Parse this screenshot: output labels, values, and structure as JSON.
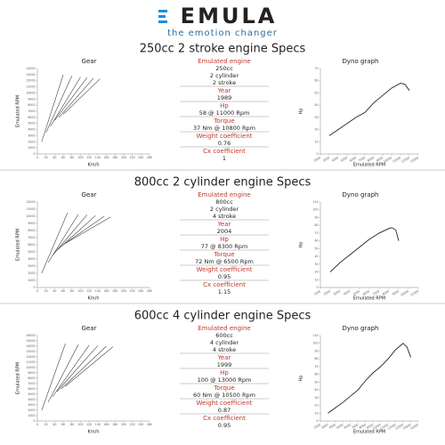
{
  "header": {
    "logo": "EMULA",
    "tagline": "the emotion changer"
  },
  "sections": [
    {
      "title": "250cc 2 stroke engine Specs",
      "specs": [
        {
          "label": "Emulated engine",
          "values": [
            "250cc",
            "2 cylinder",
            "2 stroke"
          ]
        },
        {
          "label": "Year",
          "values": [
            "1989"
          ]
        },
        {
          "label": "Hp",
          "values": [
            "58 @ 11000 Rpm"
          ]
        },
        {
          "label": "Torque",
          "values": [
            "37 Nm @ 10800 Rpm"
          ]
        },
        {
          "label": "Weight coefficient",
          "values": [
            "0.76"
          ]
        },
        {
          "label": "Cx coefficient",
          "values": [
            "1"
          ]
        }
      ]
    },
    {
      "title": "800cc 2 cylinder engine Specs",
      "specs": [
        {
          "label": "Emulated engine",
          "values": [
            "800cc",
            "2 cylinder",
            "4 stroke"
          ]
        },
        {
          "label": "Year",
          "values": [
            "2004"
          ]
        },
        {
          "label": "Hp",
          "values": [
            "77 @ 8300 Rpm"
          ]
        },
        {
          "label": "Torque",
          "values": [
            "72 Nm @ 6500 Rpm"
          ]
        },
        {
          "label": "Weight coefficient",
          "values": [
            "0.95"
          ]
        },
        {
          "label": "Cx coefficient",
          "values": [
            "1.15"
          ]
        }
      ]
    },
    {
      "title": "600cc 4 cylinder engine Specs",
      "specs": [
        {
          "label": "Emulated engine",
          "values": [
            "600cc",
            "4 cylinder",
            "4 stroke"
          ]
        },
        {
          "label": "Year",
          "values": [
            "1999"
          ]
        },
        {
          "label": "Hp",
          "values": [
            "100 @ 13000 Rpm"
          ]
        },
        {
          "label": "Torque",
          "values": [
            "60 Nm @ 10500 Rpm"
          ]
        },
        {
          "label": "Weight coefficient",
          "values": [
            "0.87"
          ]
        },
        {
          "label": "Cx coefficient",
          "values": [
            "0.95"
          ]
        }
      ]
    }
  ],
  "chart_data": [
    {
      "type": "line",
      "title": "Gear",
      "x_label": "Km/h",
      "y_label": "Emulated RPM",
      "xlim": [
        0,
        260
      ],
      "xticks": [
        0,
        20,
        40,
        60,
        80,
        100,
        120,
        140,
        160,
        180,
        200,
        220,
        240,
        260
      ],
      "ylim": [
        0,
        14000
      ],
      "yticks": [
        0,
        1000,
        2000,
        3000,
        4000,
        5000,
        6000,
        7000,
        8000,
        9000,
        10000,
        11000,
        12000,
        13000,
        14000
      ],
      "color": "#444444",
      "series": [
        {
          "x": [
            10,
            60
          ],
          "values": [
            2000,
            13000
          ]
        },
        {
          "x": [
            20,
            80
          ],
          "values": [
            3500,
            12800
          ]
        },
        {
          "x": [
            30,
            100
          ],
          "values": [
            4500,
            12600
          ]
        },
        {
          "x": [
            40,
            115
          ],
          "values": [
            5500,
            12500
          ]
        },
        {
          "x": [
            50,
            130
          ],
          "values": [
            6000,
            12400
          ]
        },
        {
          "x": [
            60,
            145
          ],
          "values": [
            6500,
            12300
          ]
        }
      ]
    },
    {
      "type": "line",
      "title": "Dyno graph",
      "x_label": "Emulated RPM",
      "y_label": "Hp",
      "xlim": [
        2000,
        13000
      ],
      "xticks": [
        2000,
        3000,
        4000,
        5000,
        6000,
        7000,
        8000,
        9000,
        10000,
        11000,
        12000,
        13000
      ],
      "ylim": [
        0,
        70
      ],
      "yticks": [
        0,
        10,
        20,
        30,
        40,
        50,
        60,
        70
      ],
      "color": "#222222",
      "series": [
        {
          "x": [
            3000,
            4000,
            5000,
            6000,
            7000,
            8000,
            9000,
            10000,
            11000,
            11500,
            12000
          ],
          "values": [
            15,
            20,
            25,
            30,
            34,
            42,
            48,
            54,
            58,
            57,
            52
          ]
        }
      ]
    },
    {
      "type": "line",
      "title": "Gear",
      "x_label": "Km/h",
      "y_label": "Emulated RPM",
      "xlim": [
        0,
        260
      ],
      "xticks": [
        0,
        20,
        40,
        60,
        80,
        100,
        120,
        140,
        160,
        180,
        200,
        220,
        240,
        260
      ],
      "ylim": [
        0,
        12000
      ],
      "yticks": [
        0,
        1000,
        2000,
        3000,
        4000,
        5000,
        6000,
        7000,
        8000,
        9000,
        10000,
        11000,
        12000
      ],
      "color": "#444444",
      "series": [
        {
          "x": [
            10,
            70
          ],
          "values": [
            2000,
            10500
          ]
        },
        {
          "x": [
            25,
            95
          ],
          "values": [
            3500,
            10300
          ]
        },
        {
          "x": [
            35,
            115
          ],
          "values": [
            4500,
            10200
          ]
        },
        {
          "x": [
            45,
            135
          ],
          "values": [
            5200,
            10100
          ]
        },
        {
          "x": [
            55,
            155
          ],
          "values": [
            5800,
            10000
          ]
        },
        {
          "x": [
            65,
            170
          ],
          "values": [
            6200,
            9900
          ]
        }
      ]
    },
    {
      "type": "line",
      "title": "Dyno graph",
      "x_label": "Emulated RPM",
      "y_label": "Hp",
      "xlim": [
        1000,
        11000
      ],
      "xticks": [
        1000,
        2000,
        3000,
        4000,
        5000,
        6000,
        7000,
        8000,
        9000,
        10000,
        11000
      ],
      "ylim": [
        0,
        110
      ],
      "yticks": [
        0,
        10,
        20,
        30,
        40,
        50,
        60,
        70,
        80,
        90,
        100,
        110
      ],
      "color": "#222222",
      "series": [
        {
          "x": [
            2000,
            3000,
            4000,
            5000,
            6000,
            7000,
            8000,
            8300,
            8700,
            9000
          ],
          "values": [
            20,
            32,
            42,
            52,
            62,
            70,
            76,
            77,
            74,
            60
          ]
        }
      ]
    },
    {
      "type": "line",
      "title": "Gear",
      "x_label": "Km/h",
      "y_label": "Emulated RPM",
      "xlim": [
        0,
        260
      ],
      "xticks": [
        0,
        20,
        40,
        60,
        80,
        100,
        120,
        140,
        160,
        180,
        200,
        220,
        240,
        260
      ],
      "ylim": [
        0,
        16000
      ],
      "yticks": [
        0,
        1000,
        2000,
        3000,
        4000,
        5000,
        6000,
        7000,
        8000,
        9000,
        10000,
        11000,
        12000,
        13000,
        14000,
        15000,
        16000
      ],
      "color": "#444444",
      "series": [
        {
          "x": [
            10,
            65
          ],
          "values": [
            2000,
            14500
          ]
        },
        {
          "x": [
            25,
            95
          ],
          "values": [
            3500,
            14300
          ]
        },
        {
          "x": [
            35,
            120
          ],
          "values": [
            4500,
            14200
          ]
        },
        {
          "x": [
            45,
            140
          ],
          "values": [
            5500,
            14100
          ]
        },
        {
          "x": [
            55,
            160
          ],
          "values": [
            6000,
            14000
          ]
        },
        {
          "x": [
            65,
            175
          ],
          "values": [
            6500,
            13900
          ]
        }
      ]
    },
    {
      "type": "line",
      "title": "Dyno graph",
      "x_label": "Emulated RPM",
      "y_label": "Hp",
      "xlim": [
        2000,
        15000
      ],
      "xticks": [
        2000,
        3000,
        4000,
        5000,
        6000,
        7000,
        8000,
        9000,
        10000,
        11000,
        12000,
        13000,
        14000,
        15000
      ],
      "ylim": [
        0,
        110
      ],
      "yticks": [
        0,
        10,
        20,
        30,
        40,
        50,
        60,
        70,
        80,
        90,
        100,
        110
      ],
      "color": "#222222",
      "series": [
        {
          "x": [
            3000,
            4000,
            5000,
            6000,
            7000,
            8000,
            9000,
            10000,
            11000,
            12000,
            13000,
            13500,
            14000
          ],
          "values": [
            10,
            17,
            24,
            32,
            40,
            52,
            62,
            70,
            80,
            92,
            100,
            95,
            82
          ]
        }
      ]
    }
  ]
}
